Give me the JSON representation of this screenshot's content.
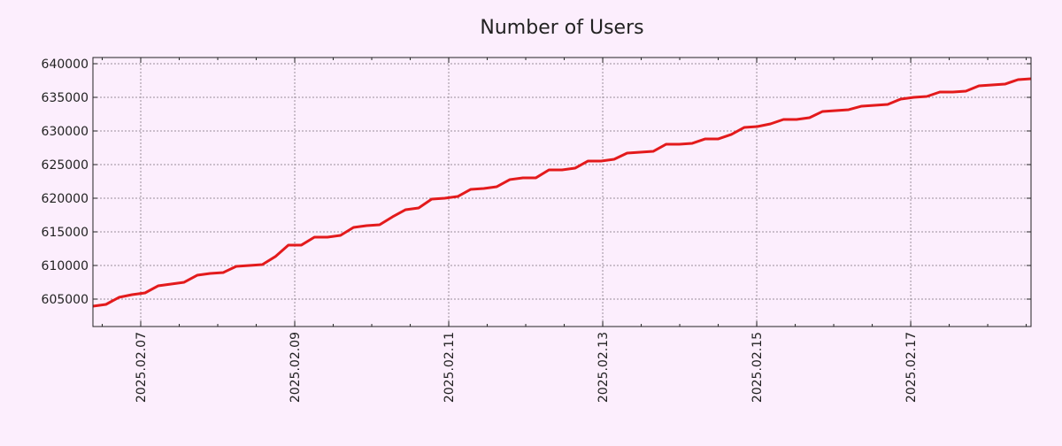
{
  "chart_data": {
    "type": "line",
    "title": "Number of Users",
    "xlabel": "",
    "ylabel": "",
    "xlim": [
      "2025-02-06T09:06:00",
      "2025-02-18T13:30:00"
    ],
    "ylim": [
      600920,
      640920
    ],
    "grid": true,
    "legend": "none",
    "line_color": "#e31a1c",
    "x_ticks": [
      "2025.02.07",
      "2025.02.09",
      "2025.02.11",
      "2025.02.13",
      "2025.02.15",
      "2025.02.17"
    ],
    "y_ticks": [
      "605000",
      "610000",
      "615000",
      "620000",
      "625000",
      "630000",
      "635000",
      "640000"
    ],
    "series": [
      {
        "name": "Number of Users",
        "x_range": [
          "2025-02-06T09:06:00",
          "2025-02-18T13:30:00"
        ],
        "values": [
          603950,
          604210,
          605260,
          605660,
          605920,
          606970,
          607240,
          607500,
          608550,
          608820,
          608950,
          609870,
          610000,
          610130,
          611320,
          613030,
          613030,
          614210,
          614210,
          614470,
          615660,
          615920,
          616050,
          617240,
          618290,
          618550,
          619870,
          620000,
          620260,
          621320,
          621450,
          621710,
          622770,
          623030,
          623030,
          624210,
          624210,
          624470,
          625530,
          625530,
          625790,
          626710,
          626840,
          626970,
          628030,
          628030,
          628160,
          628820,
          628820,
          629480,
          630530,
          630660,
          631050,
          631710,
          631710,
          631970,
          632900,
          633030,
          633160,
          633690,
          633820,
          633950,
          634740,
          635000,
          635130,
          635790,
          635790,
          635920,
          636710,
          636840,
          636970,
          637630,
          637760
        ]
      }
    ]
  }
}
